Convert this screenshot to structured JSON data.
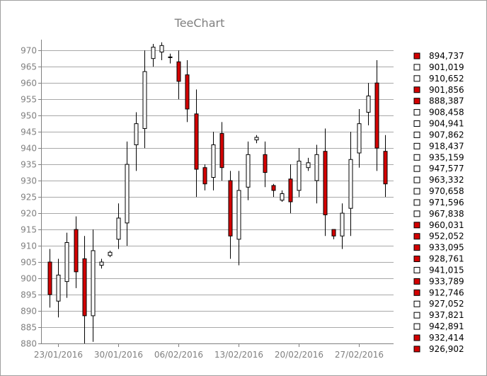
{
  "chart_data": {
    "type": "candlestick",
    "title": "TeeChart",
    "ylim": [
      880,
      972
    ],
    "y_ticks": [
      880,
      885,
      890,
      895,
      900,
      905,
      910,
      915,
      920,
      925,
      930,
      935,
      940,
      945,
      950,
      955,
      960,
      965,
      970
    ],
    "x_tick_labels": [
      "23/01/2016",
      "30/01/2016",
      "06/02/2016",
      "13/02/2016",
      "20/02/2016",
      "27/02/2016"
    ],
    "x_tick_dates": [
      "2016-01-23",
      "2016-01-30",
      "2016-02-06",
      "2016-02-13",
      "2016-02-20",
      "2016-02-27"
    ],
    "x_range": [
      "2016-01-21",
      "2016-03-02"
    ],
    "grid": true,
    "up_color": "#ffffff",
    "down_color": "#d40000",
    "outline_color": "#000000",
    "legend": {
      "position": "right",
      "items": [
        "894,737",
        "901,019",
        "910,652",
        "901,856",
        "888,387",
        "908,458",
        "904,941",
        "907,862",
        "918,437",
        "935,159",
        "947,577",
        "963,332",
        "970,658",
        "971,596",
        "967,838",
        "960,031",
        "952,052",
        "933,095",
        "928,761",
        "941,015",
        "933,789",
        "912,746",
        "927,052",
        "937,821",
        "942,891",
        "932,414",
        "926,902"
      ]
    },
    "candles": [
      {
        "date": "2016-01-22",
        "open": 905.0,
        "high": 909.0,
        "low": 891.0,
        "close": 895.0
      },
      {
        "date": "2016-01-23",
        "open": 893.0,
        "high": 906.0,
        "low": 888.0,
        "close": 901.0
      },
      {
        "date": "2016-01-24",
        "open": 899.0,
        "high": 914.0,
        "low": 894.0,
        "close": 911.0
      },
      {
        "date": "2016-01-25",
        "open": 915.0,
        "high": 919.0,
        "low": 897.0,
        "close": 902.0
      },
      {
        "date": "2016-01-26",
        "open": 906.0,
        "high": 913.0,
        "low": 880.0,
        "close": 888.5
      },
      {
        "date": "2016-01-27",
        "open": 888.5,
        "high": 915.0,
        "low": 880.5,
        "close": 908.5
      },
      {
        "date": "2016-01-28",
        "open": 904.0,
        "high": 906.0,
        "low": 903.0,
        "close": 905.0
      },
      {
        "date": "2016-01-29",
        "open": 907.0,
        "high": 908.5,
        "low": 906.5,
        "close": 908.0
      },
      {
        "date": "2016-01-30",
        "open": 912.0,
        "high": 923.0,
        "low": 909.0,
        "close": 918.5
      },
      {
        "date": "2016-01-31",
        "open": 917.0,
        "high": 942.0,
        "low": 910.0,
        "close": 935.0
      },
      {
        "date": "2016-02-01",
        "open": 941.0,
        "high": 951.0,
        "low": 933.0,
        "close": 947.5
      },
      {
        "date": "2016-02-02",
        "open": 946.0,
        "high": 970.0,
        "low": 940.0,
        "close": 963.5
      },
      {
        "date": "2016-02-03",
        "open": 967.5,
        "high": 972.0,
        "low": 965.0,
        "close": 971.0
      },
      {
        "date": "2016-02-04",
        "open": 969.5,
        "high": 972.5,
        "low": 967.0,
        "close": 971.5
      },
      {
        "date": "2016-02-05",
        "open": 968.0,
        "high": 969.0,
        "low": 966.0,
        "close": 967.8
      },
      {
        "date": "2016-02-06",
        "open": 966.5,
        "high": 970.0,
        "low": 955.0,
        "close": 960.5
      },
      {
        "date": "2016-02-07",
        "open": 962.5,
        "high": 967.0,
        "low": 948.0,
        "close": 952.0
      },
      {
        "date": "2016-02-08",
        "open": 950.5,
        "high": 958.0,
        "low": 925.0,
        "close": 933.5
      },
      {
        "date": "2016-02-09",
        "open": 934.0,
        "high": 935.0,
        "low": 927.0,
        "close": 929.0
      },
      {
        "date": "2016-02-10",
        "open": 931.0,
        "high": 945.0,
        "low": 927.0,
        "close": 941.0
      },
      {
        "date": "2016-02-11",
        "open": 944.5,
        "high": 948.0,
        "low": 930.0,
        "close": 934.0
      },
      {
        "date": "2016-02-12",
        "open": 930.0,
        "high": 933.0,
        "low": 906.0,
        "close": 913.0
      },
      {
        "date": "2016-02-13",
        "open": 912.0,
        "high": 933.0,
        "low": 904.0,
        "close": 927.0
      },
      {
        "date": "2016-02-14",
        "open": 928.0,
        "high": 942.0,
        "low": 924.0,
        "close": 938.0
      },
      {
        "date": "2016-02-15",
        "open": 942.5,
        "high": 944.0,
        "low": 941.5,
        "close": 943.3
      },
      {
        "date": "2016-02-16",
        "open": 938.0,
        "high": 942.0,
        "low": 928.0,
        "close": 932.5
      },
      {
        "date": "2016-02-17",
        "open": 928.5,
        "high": 929.0,
        "low": 925.0,
        "close": 927.0
      },
      {
        "date": "2016-02-18",
        "open": 924.0,
        "high": 927.0,
        "low": 923.5,
        "close": 926.0
      },
      {
        "date": "2016-02-19",
        "open": 930.5,
        "high": 935.0,
        "low": 920.0,
        "close": 923.5
      },
      {
        "date": "2016-02-20",
        "open": 927.0,
        "high": 940.0,
        "low": 925.0,
        "close": 936.0
      },
      {
        "date": "2016-02-21",
        "open": 934.0,
        "high": 937.0,
        "low": 933.0,
        "close": 935.5
      },
      {
        "date": "2016-02-22",
        "open": 930.0,
        "high": 941.0,
        "low": 923.0,
        "close": 938.0
      },
      {
        "date": "2016-02-23",
        "open": 939.0,
        "high": 946.0,
        "low": 913.0,
        "close": 919.5
      },
      {
        "date": "2016-02-24",
        "open": 915.0,
        "high": 915.0,
        "low": 912.0,
        "close": 913.0
      },
      {
        "date": "2016-02-25",
        "open": 913.0,
        "high": 923.0,
        "low": 909.0,
        "close": 920.0
      },
      {
        "date": "2016-02-26",
        "open": 921.5,
        "high": 945.0,
        "low": 913.0,
        "close": 936.5
      },
      {
        "date": "2016-02-27",
        "open": 938.5,
        "high": 952.0,
        "low": 934.0,
        "close": 947.5
      },
      {
        "date": "2016-02-28",
        "open": 951.0,
        "high": 960.0,
        "low": 947.0,
        "close": 956.0
      },
      {
        "date": "2016-02-29",
        "open": 960.0,
        "high": 967.0,
        "low": 933.0,
        "close": 940.0
      },
      {
        "date": "2016-03-01",
        "open": 939.0,
        "high": 944.0,
        "low": 925.0,
        "close": 929.0
      }
    ]
  }
}
